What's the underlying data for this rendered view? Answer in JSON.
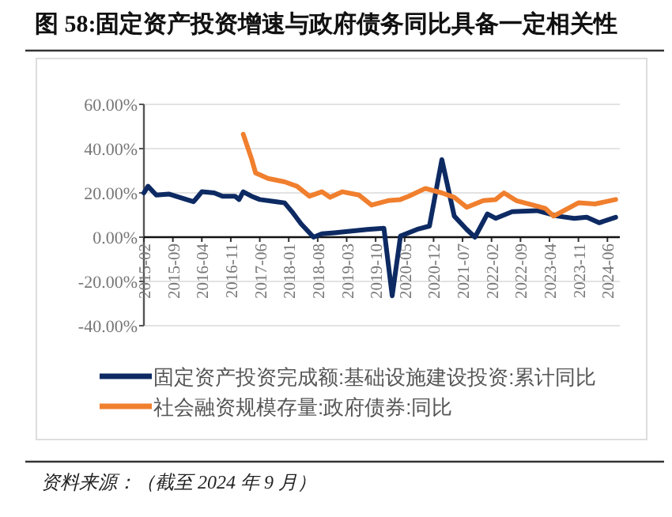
{
  "chart_data": {
    "type": "line",
    "title": "图 58:固定资产投资增速与政府债务同比具备一定相关性",
    "annotations": [
      "资料来源：（截至 2024 年 9 月）"
    ],
    "xlim": [
      "2015-02",
      "2024-09"
    ],
    "xticks": [
      "2015-02",
      "2015-09",
      "2016-04",
      "2016-11",
      "2017-06",
      "2018-01",
      "2018-08",
      "2019-03",
      "2019-10",
      "2020-05",
      "2020-12",
      "2021-07",
      "2022-02",
      "2022-09",
      "2023-04",
      "2023-11",
      "2024-06"
    ],
    "ylim": [
      -40,
      60
    ],
    "yticks": [
      {
        "value": -40,
        "label": "-40.00%"
      },
      {
        "value": -20,
        "label": "-20.00%"
      },
      {
        "value": 0,
        "label": "0.00%"
      },
      {
        "value": 20,
        "label": "20.00%"
      },
      {
        "value": 40,
        "label": "40.00%"
      },
      {
        "value": 60,
        "label": "60.00%"
      }
    ],
    "grid": "y",
    "legend": "bottom",
    "series": [
      {
        "name": "固定资产投资完成额:基础设施建设投资:累计同比",
        "color": "#0d2a63",
        "x": [
          "2015-02",
          "2015-03",
          "2015-05",
          "2015-08",
          "2016-02",
          "2016-04",
          "2016-07",
          "2016-09",
          "2016-12",
          "2017-01",
          "2017-02",
          "2017-04",
          "2017-06",
          "2017-10",
          "2017-12",
          "2018-02",
          "2018-04",
          "2018-07",
          "2018-09",
          "2018-12",
          "2019-08",
          "2019-12",
          "2020-02",
          "2020-04",
          "2020-08",
          "2020-11",
          "2021-02",
          "2021-05",
          "2021-08",
          "2021-10",
          "2022-01",
          "2022-03",
          "2022-07",
          "2023-01",
          "2023-06",
          "2023-10",
          "2024-01",
          "2024-04",
          "2024-08"
        ],
        "values": [
          20,
          23,
          19,
          19.5,
          16,
          20.5,
          20,
          18.5,
          18.5,
          17,
          20.5,
          18.5,
          17,
          16,
          15.5,
          11,
          6,
          0,
          1.5,
          2,
          3.5,
          4,
          -26.5,
          0.5,
          3.5,
          5,
          35,
          9.5,
          3.5,
          0,
          10.5,
          8.5,
          11.5,
          12,
          9.5,
          8.5,
          9,
          6.5,
          9
        ]
      },
      {
        "name": "社会融资规模存量:政府债券:同比",
        "color": "#f07f2e",
        "x": [
          "2017-02",
          "2017-04",
          "2017-05",
          "2017-08",
          "2017-12",
          "2018-03",
          "2018-06",
          "2018-09",
          "2018-11",
          "2019-02",
          "2019-06",
          "2019-09",
          "2020-01",
          "2020-04",
          "2020-06",
          "2020-10",
          "2021-02",
          "2021-05",
          "2021-08",
          "2021-12",
          "2022-03",
          "2022-05",
          "2022-08",
          "2022-12",
          "2023-03",
          "2023-05",
          "2023-11",
          "2024-03",
          "2024-08"
        ],
        "values": [
          46.5,
          35.5,
          29,
          26.5,
          25,
          23,
          18.5,
          20.5,
          18,
          20.5,
          19,
          14.5,
          16.5,
          17,
          18.5,
          22,
          20,
          18,
          13.5,
          16.5,
          17,
          20,
          16.5,
          14.5,
          13,
          9.5,
          15.5,
          15,
          17
        ]
      }
    ]
  }
}
